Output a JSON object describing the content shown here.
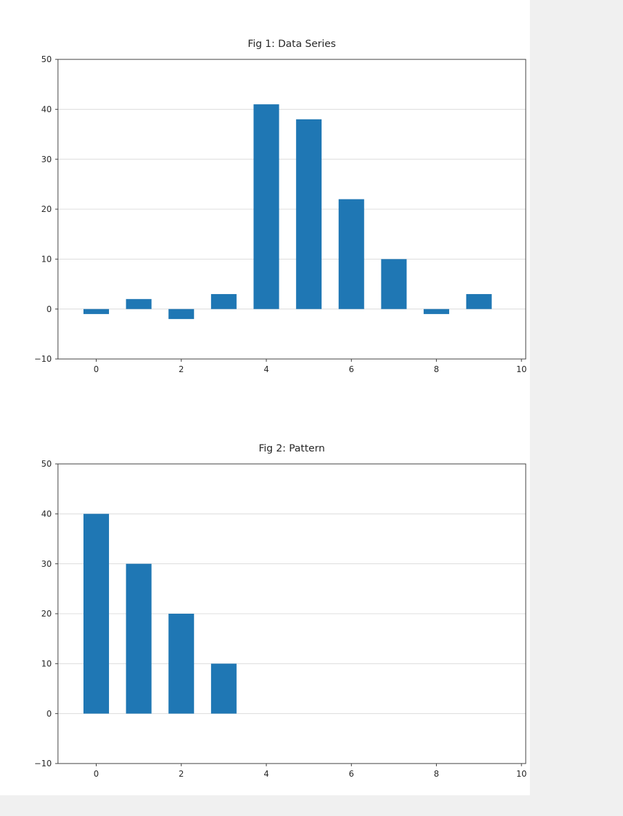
{
  "colors": {
    "bar": "#1f77b4",
    "grid": "#dcdcdc",
    "axis": "#3c3c3c",
    "text": "#262626",
    "figure_background": "#ffffff",
    "page_background": "#f0f0f0"
  },
  "chart_data": [
    {
      "type": "bar",
      "title": "Fig 1: Data Series",
      "x": [
        0,
        1,
        2,
        3,
        4,
        5,
        6,
        7,
        8,
        9
      ],
      "values": [
        -1,
        2,
        -2,
        3,
        41,
        38,
        22,
        10,
        -1,
        3
      ],
      "bar_width": 0.6,
      "xlabel": "",
      "ylabel": "",
      "xlim": [
        -0.9,
        10.1
      ],
      "ylim": [
        -10,
        50
      ],
      "xticks": [
        0,
        2,
        4,
        6,
        8,
        10
      ],
      "yticks": [
        -10,
        0,
        10,
        20,
        30,
        40,
        50
      ],
      "grid": "horizontal",
      "legend": "none"
    },
    {
      "type": "bar",
      "title": "Fig 2: Pattern",
      "x": [
        0,
        1,
        2,
        3
      ],
      "values": [
        40,
        30,
        20,
        10
      ],
      "bar_width": 0.6,
      "xlabel": "",
      "ylabel": "",
      "xlim": [
        -0.9,
        10.1
      ],
      "ylim": [
        -10,
        50
      ],
      "xticks": [
        0,
        2,
        4,
        6,
        8,
        10
      ],
      "yticks": [
        -10,
        0,
        10,
        20,
        30,
        40,
        50
      ],
      "grid": "horizontal",
      "legend": "none"
    }
  ]
}
